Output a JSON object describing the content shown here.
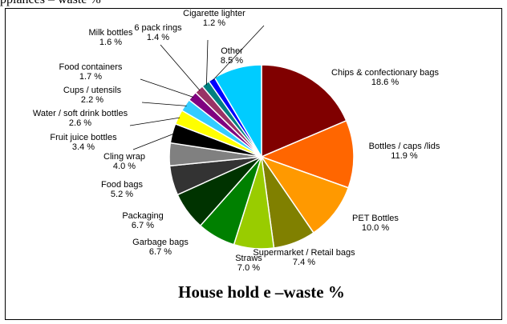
{
  "page": {
    "header_fragment": "pplances – waste %"
  },
  "chart_data": {
    "type": "pie",
    "title": "House hold e –waste %",
    "unit": "%",
    "slices": [
      {
        "label": "Chips & confectionary bags",
        "value": 18.6,
        "display": "18.6 %",
        "color": "#800000"
      },
      {
        "label": "Bottles / caps /lids",
        "value": 11.9,
        "display": "11.9 %",
        "color": "#ff6600"
      },
      {
        "label": "PET Bottles",
        "value": 10.0,
        "display": "10.0 %",
        "color": "#ff9900"
      },
      {
        "label": "Supermarket / Retail bags",
        "value": 7.4,
        "display": "7.4 %",
        "color": "#808000"
      },
      {
        "label": "Straws",
        "value": 7.0,
        "display": "7.0 %",
        "color": "#99cc00"
      },
      {
        "label": "Garbage bags",
        "value": 6.7,
        "display": "6.7 %",
        "color": "#008000"
      },
      {
        "label": "Packaging",
        "value": 6.7,
        "display": "6.7 %",
        "color": "#003300"
      },
      {
        "label": "Food bags",
        "value": 5.2,
        "display": "5.2 %",
        "color": "#333333"
      },
      {
        "label": "Cling wrap",
        "value": 4.0,
        "display": "4.0 %",
        "color": "#808080"
      },
      {
        "label": "Fruit juice bottles",
        "value": 3.4,
        "display": "3.4 %",
        "color": "#000000"
      },
      {
        "label": "Water / soft drink bottles",
        "value": 2.6,
        "display": "2.6 %",
        "color": "#ffff00"
      },
      {
        "label": "Cups / utensils",
        "value": 2.2,
        "display": "2.2 %",
        "color": "#33ccff"
      },
      {
        "label": "Food containers",
        "value": 1.7,
        "display": "1.7 %",
        "color": "#800080"
      },
      {
        "label": "Milk bottles",
        "value": 1.6,
        "display": "1.6 %",
        "color": "#993366"
      },
      {
        "label": "6 pack rings",
        "value": 1.4,
        "display": "1.4 %",
        "color": "#008080"
      },
      {
        "label": "Cigarette lighter",
        "value": 1.2,
        "display": "1.2 %",
        "color": "#0000ff"
      },
      {
        "label": "Other",
        "value": 8.5,
        "display": "8.5 %",
        "color": "#00ccff"
      }
    ]
  }
}
